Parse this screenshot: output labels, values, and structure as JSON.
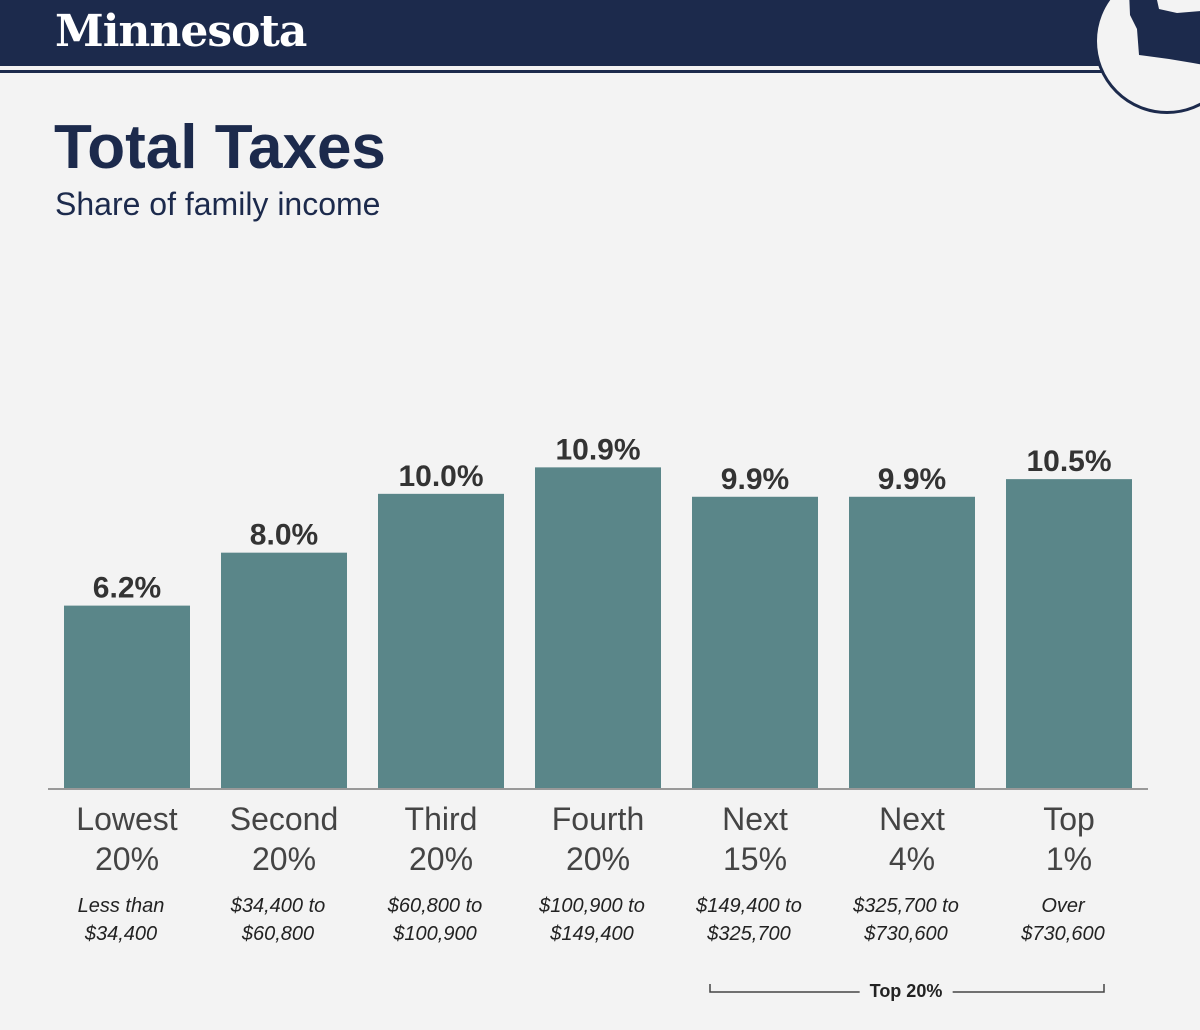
{
  "header": {
    "brand": "Minnesota"
  },
  "title": "Total Taxes",
  "subtitle": "Share of family income",
  "colors": {
    "navy": "#1c2a4c",
    "bar": "#5a8689",
    "background": "#f3f3f3",
    "axis": "#999999"
  },
  "chart_data": {
    "type": "bar",
    "title": "Total Taxes",
    "subtitle": "Share of family income",
    "xlabel": "",
    "ylabel": "",
    "ylim": [
      0,
      12.85
    ],
    "grid": false,
    "categories": [
      "Lowest 20%",
      "Second 20%",
      "Third 20%",
      "Fourth 20%",
      "Next 15%",
      "Next 4%",
      "Top 1%"
    ],
    "category_lines": [
      [
        "Lowest",
        "20%"
      ],
      [
        "Second",
        "20%"
      ],
      [
        "Third",
        "20%"
      ],
      [
        "Fourth",
        "20%"
      ],
      [
        "Next",
        "15%"
      ],
      [
        "Next",
        "4%"
      ],
      [
        "Top",
        "1%"
      ]
    ],
    "income_ranges": [
      [
        "Less than",
        "$34,400"
      ],
      [
        "$34,400 to",
        "$60,800"
      ],
      [
        "$60,800 to",
        "$100,900"
      ],
      [
        "$100,900 to",
        "$149,400"
      ],
      [
        "$149,400 to",
        "$325,700"
      ],
      [
        "$325,700 to",
        "$730,600"
      ],
      [
        "Over",
        "$730,600"
      ]
    ],
    "values": [
      6.2,
      8.0,
      10.0,
      10.9,
      9.9,
      9.9,
      10.5
    ],
    "value_labels": [
      "6.2%",
      "8.0%",
      "10.0%",
      "10.9%",
      "9.9%",
      "9.9%",
      "10.5%"
    ],
    "annotations": [
      {
        "text": "Top 20%",
        "spans": [
          "Next 15%",
          "Next 4%",
          "Top 1%"
        ]
      }
    ]
  }
}
